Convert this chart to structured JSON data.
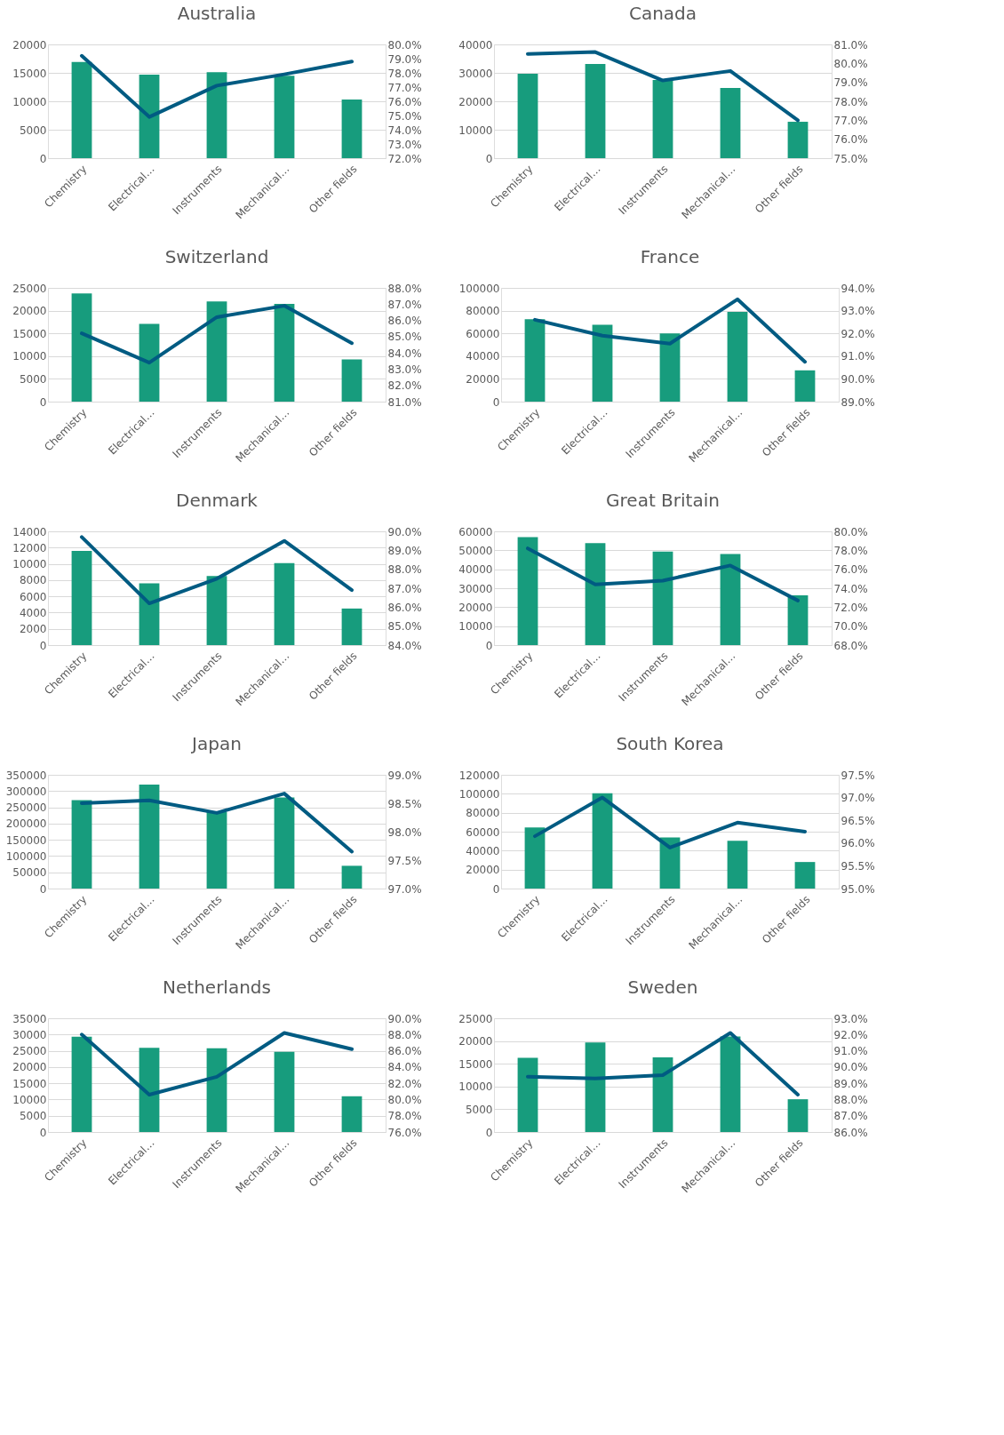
{
  "chart_data": [
    {
      "type": "bar",
      "title": "Australia",
      "categories": [
        "Chemistry",
        "Electrical…",
        "Instruments",
        "Mechanical…",
        "Other fields"
      ],
      "series": [
        {
          "color": "#179c7d",
          "values": [
            16900,
            14700,
            15100,
            14500,
            10300
          ]
        },
        {
          "type": "line",
          "axis": "y2",
          "color": "#005b82",
          "values": [
            79.2,
            74.9,
            77.1,
            77.9,
            78.8
          ]
        }
      ],
      "ylim": [
        0,
        20000
      ],
      "yticks": [
        0,
        5000,
        10000,
        15000,
        20000
      ],
      "y2lim": [
        72,
        80
      ],
      "y2ticks": [
        {
          "value": 72,
          "label": "72.0%"
        },
        {
          "value": 73,
          "label": "73.0%"
        },
        {
          "value": 74,
          "label": "74.0%"
        },
        {
          "value": 75,
          "label": "75.0%"
        },
        {
          "value": 76,
          "label": "76.0%"
        },
        {
          "value": 77,
          "label": "77.0%"
        },
        {
          "value": 78,
          "label": "78.0%"
        },
        {
          "value": 79,
          "label": "79.0%"
        },
        {
          "value": 80,
          "label": "80.0%"
        }
      ],
      "grid": "y"
    },
    {
      "type": "bar",
      "title": "Canada",
      "categories": [
        "Chemistry",
        "Electrical…",
        "Instruments",
        "Mechanical…",
        "Other fields"
      ],
      "series": [
        {
          "color": "#179c7d",
          "values": [
            29700,
            33100,
            27500,
            24700,
            12800
          ]
        },
        {
          "type": "line",
          "axis": "y2",
          "color": "#005b82",
          "values": [
            80.5,
            80.6,
            79.1,
            79.6,
            77.0
          ]
        }
      ],
      "ylim": [
        0,
        40000
      ],
      "yticks": [
        0,
        10000,
        20000,
        30000,
        40000
      ],
      "y2lim": [
        75,
        81
      ],
      "y2ticks": [
        {
          "value": 75,
          "label": "75.0%"
        },
        {
          "value": 76,
          "label": "76.0%"
        },
        {
          "value": 77,
          "label": "77.0%"
        },
        {
          "value": 78,
          "label": "78.0%"
        },
        {
          "value": 79,
          "label": "79.0%"
        },
        {
          "value": 80,
          "label": "80.0%"
        },
        {
          "value": 81,
          "label": "81.0%"
        }
      ],
      "grid": "y"
    },
    {
      "type": "bar",
      "title": "Switzerland",
      "categories": [
        "Chemistry",
        "Electrical…",
        "Instruments",
        "Mechanical…",
        "Other fields"
      ],
      "series": [
        {
          "color": "#179c7d",
          "values": [
            23800,
            17100,
            22000,
            21500,
            9300
          ]
        },
        {
          "type": "line",
          "axis": "y2",
          "color": "#005b82",
          "values": [
            85.2,
            83.4,
            86.2,
            86.9,
            84.6
          ]
        }
      ],
      "ylim": [
        0,
        25000
      ],
      "yticks": [
        0,
        5000,
        10000,
        15000,
        20000,
        25000
      ],
      "y2lim": [
        81,
        88
      ],
      "y2ticks": [
        {
          "value": 81,
          "label": "81.0%"
        },
        {
          "value": 82,
          "label": "82.0%"
        },
        {
          "value": 83,
          "label": "83.0%"
        },
        {
          "value": 84,
          "label": "84.0%"
        },
        {
          "value": 85,
          "label": "85.0%"
        },
        {
          "value": 86,
          "label": "86.0%"
        },
        {
          "value": 87,
          "label": "87.0%"
        },
        {
          "value": 88,
          "label": "88.0%"
        }
      ],
      "grid": "y"
    },
    {
      "type": "bar",
      "title": "France",
      "categories": [
        "Chemistry",
        "Electrical…",
        "Instruments",
        "Mechanical…",
        "Other fields"
      ],
      "series": [
        {
          "color": "#179c7d",
          "values": [
            72500,
            67500,
            60000,
            79000,
            27500
          ]
        },
        {
          "type": "line",
          "axis": "y2",
          "color": "#005b82",
          "values": [
            92.6,
            91.9,
            91.55,
            93.5,
            90.75
          ]
        }
      ],
      "ylim": [
        0,
        100000
      ],
      "yticks": [
        0,
        20000,
        40000,
        60000,
        80000,
        100000
      ],
      "y2lim": [
        89,
        94
      ],
      "y2ticks": [
        {
          "value": 89,
          "label": "89.0%"
        },
        {
          "value": 90,
          "label": "90.0%"
        },
        {
          "value": 91,
          "label": "91.0%"
        },
        {
          "value": 92,
          "label": "92.0%"
        },
        {
          "value": 93,
          "label": "93.0%"
        },
        {
          "value": 94,
          "label": "94.0%"
        }
      ],
      "grid": "y"
    },
    {
      "type": "bar",
      "title": "Denmark",
      "categories": [
        "Chemistry",
        "Electrical…",
        "Instruments",
        "Mechanical…",
        "Other fields"
      ],
      "series": [
        {
          "color": "#179c7d",
          "values": [
            11600,
            7600,
            8500,
            10100,
            4500
          ]
        },
        {
          "type": "line",
          "axis": "y2",
          "color": "#005b82",
          "values": [
            89.7,
            86.2,
            87.5,
            89.5,
            86.9
          ]
        }
      ],
      "ylim": [
        0,
        14000
      ],
      "yticks": [
        0,
        2000,
        4000,
        6000,
        8000,
        10000,
        12000,
        14000
      ],
      "y2lim": [
        84,
        90
      ],
      "y2ticks": [
        {
          "value": 84,
          "label": "84.0%"
        },
        {
          "value": 85,
          "label": "85.0%"
        },
        {
          "value": 86,
          "label": "86.0%"
        },
        {
          "value": 87,
          "label": "87.0%"
        },
        {
          "value": 88,
          "label": "88.0%"
        },
        {
          "value": 89,
          "label": "89.0%"
        },
        {
          "value": 90,
          "label": "90.0%"
        }
      ],
      "grid": "y"
    },
    {
      "type": "bar",
      "title": "Great Britain",
      "categories": [
        "Chemistry",
        "Electrical…",
        "Instruments",
        "Mechanical…",
        "Other fields"
      ],
      "series": [
        {
          "color": "#179c7d",
          "values": [
            57000,
            53800,
            49300,
            48000,
            26200
          ]
        },
        {
          "type": "line",
          "axis": "y2",
          "color": "#005b82",
          "values": [
            78.2,
            74.4,
            74.8,
            76.4,
            72.7
          ]
        }
      ],
      "ylim": [
        0,
        60000
      ],
      "yticks": [
        0,
        10000,
        20000,
        30000,
        40000,
        50000,
        60000
      ],
      "y2lim": [
        68,
        80
      ],
      "y2ticks": [
        {
          "value": 68,
          "label": "68.0%"
        },
        {
          "value": 70,
          "label": "70.0%"
        },
        {
          "value": 72,
          "label": "72.0%"
        },
        {
          "value": 74,
          "label": "74.0%"
        },
        {
          "value": 76,
          "label": "76.0%"
        },
        {
          "value": 78,
          "label": "78.0%"
        },
        {
          "value": 80,
          "label": "80.0%"
        }
      ],
      "grid": "y"
    },
    {
      "type": "bar",
      "title": "Japan",
      "categories": [
        "Chemistry",
        "Electrical…",
        "Instruments",
        "Mechanical…",
        "Other fields"
      ],
      "series": [
        {
          "color": "#179c7d",
          "values": [
            272000,
            320000,
            235000,
            280000,
            70000
          ]
        },
        {
          "type": "line",
          "axis": "y2",
          "color": "#005b82",
          "values": [
            98.5,
            98.55,
            98.33,
            98.67,
            97.65
          ]
        }
      ],
      "ylim": [
        0,
        350000
      ],
      "yticks": [
        0,
        50000,
        100000,
        150000,
        200000,
        250000,
        300000,
        350000
      ],
      "y2lim": [
        97,
        99
      ],
      "y2ticks": [
        {
          "value": 97,
          "label": "97.0%"
        },
        {
          "value": 97.5,
          "label": "97.5%"
        },
        {
          "value": 98,
          "label": "98.0%"
        },
        {
          "value": 98.5,
          "label": "98.5%"
        },
        {
          "value": 99,
          "label": "99.0%"
        }
      ],
      "grid": "y"
    },
    {
      "type": "bar",
      "title": "South Korea",
      "categories": [
        "Chemistry",
        "Electrical…",
        "Instruments",
        "Mechanical…",
        "Other fields"
      ],
      "series": [
        {
          "color": "#179c7d",
          "values": [
            64500,
            100500,
            54000,
            50500,
            28000
          ]
        },
        {
          "type": "line",
          "axis": "y2",
          "color": "#005b82",
          "values": [
            96.15,
            97.0,
            95.9,
            96.45,
            96.25
          ]
        }
      ],
      "ylim": [
        0,
        120000
      ],
      "yticks": [
        0,
        20000,
        40000,
        60000,
        80000,
        100000,
        120000
      ],
      "y2lim": [
        95,
        97.5
      ],
      "y2ticks": [
        {
          "value": 95,
          "label": "95.0%"
        },
        {
          "value": 95.5,
          "label": "95.5%"
        },
        {
          "value": 96,
          "label": "96.0%"
        },
        {
          "value": 96.5,
          "label": "96.5%"
        },
        {
          "value": 97,
          "label": "97.0%"
        },
        {
          "value": 97.5,
          "label": "97.5%"
        }
      ],
      "grid": "y"
    },
    {
      "type": "bar",
      "title": "Netherlands",
      "categories": [
        "Chemistry",
        "Electrical…",
        "Instruments",
        "Mechanical…",
        "Other fields"
      ],
      "series": [
        {
          "color": "#179c7d",
          "values": [
            29300,
            25900,
            25800,
            24700,
            11000
          ]
        },
        {
          "type": "line",
          "axis": "y2",
          "color": "#005b82",
          "values": [
            88.0,
            80.6,
            82.8,
            88.2,
            86.2
          ]
        }
      ],
      "ylim": [
        0,
        35000
      ],
      "yticks": [
        0,
        5000,
        10000,
        15000,
        20000,
        25000,
        30000,
        35000
      ],
      "y2lim": [
        76,
        90
      ],
      "y2ticks": [
        {
          "value": 76,
          "label": "76.0%"
        },
        {
          "value": 78,
          "label": "78.0%"
        },
        {
          "value": 80,
          "label": "80.0%"
        },
        {
          "value": 82,
          "label": "82.0%"
        },
        {
          "value": 84,
          "label": "84.0%"
        },
        {
          "value": 86,
          "label": "86.0%"
        },
        {
          "value": 88,
          "label": "88.0%"
        },
        {
          "value": 90,
          "label": "90.0%"
        }
      ],
      "grid": "y"
    },
    {
      "type": "bar",
      "title": "Sweden",
      "categories": [
        "Chemistry",
        "Electrical…",
        "Instruments",
        "Mechanical…",
        "Other fields"
      ],
      "series": [
        {
          "color": "#179c7d",
          "values": [
            16300,
            19700,
            16400,
            21000,
            7200
          ]
        },
        {
          "type": "line",
          "axis": "y2",
          "color": "#005b82",
          "values": [
            89.4,
            89.3,
            89.5,
            92.1,
            88.3
          ]
        }
      ],
      "ylim": [
        0,
        25000
      ],
      "yticks": [
        0,
        5000,
        10000,
        15000,
        20000,
        25000
      ],
      "y2lim": [
        86,
        93
      ],
      "y2ticks": [
        {
          "value": 86,
          "label": "86.0%"
        },
        {
          "value": 87,
          "label": "87.0%"
        },
        {
          "value": 88,
          "label": "88.0%"
        },
        {
          "value": 89,
          "label": "89.0%"
        },
        {
          "value": 90,
          "label": "90.0%"
        },
        {
          "value": 91,
          "label": "91.0%"
        },
        {
          "value": 92,
          "label": "92.0%"
        },
        {
          "value": 93,
          "label": "93.0%"
        }
      ],
      "grid": "y"
    }
  ]
}
